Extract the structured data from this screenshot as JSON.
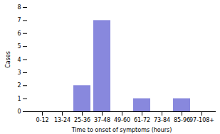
{
  "chart_data": {
    "type": "bar",
    "categories": [
      "0-12",
      "13-24",
      "25-36",
      "37-48",
      "49-60",
      "61-72",
      "73-84",
      "85-96",
      "97-108+"
    ],
    "values": [
      0,
      0,
      2,
      7,
      0,
      1,
      0,
      1,
      0
    ],
    "color": "#8888dd",
    "xlabel": "Time to onset of symptoms (hours)",
    "ylabel": "Cases",
    "ylim": [
      0,
      8
    ],
    "yticks": [
      0,
      1,
      2,
      3,
      4,
      5,
      6,
      7,
      8
    ],
    "grid": false
  }
}
